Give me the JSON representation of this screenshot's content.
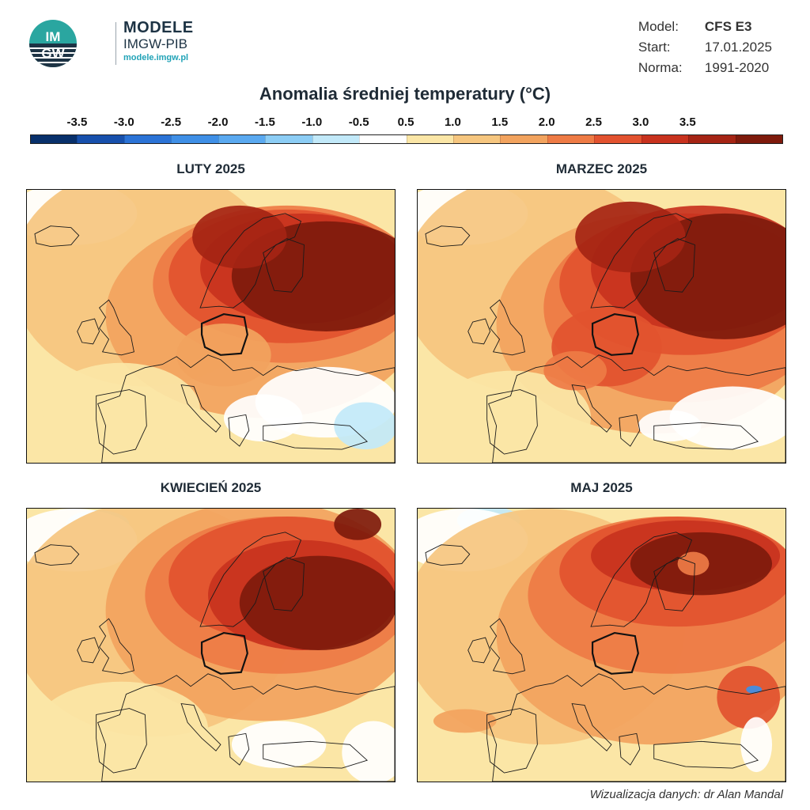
{
  "brand": {
    "logo_text_top": "IM",
    "logo_text_bottom": "GW",
    "title": "MODELE",
    "subtitle": "IMGW-PIB",
    "url": "modele.imgw.pl"
  },
  "meta": [
    {
      "key": "Model:",
      "value": "CFS E3"
    },
    {
      "key": "Start:",
      "value": "17.01.2025"
    },
    {
      "key": "Norma:",
      "value": "1991-2020"
    }
  ],
  "title": "Anomalia średniej temperatury (°C)",
  "colorbar": {
    "labels": [
      "-3.5",
      "-3.0",
      "-2.5",
      "-2.0",
      "-1.5",
      "-1.0",
      "-0.5",
      "0.5",
      "1.0",
      "1.5",
      "2.0",
      "2.5",
      "3.0",
      "3.5"
    ],
    "colors": [
      "#08306b",
      "#1750ac",
      "#2b73d6",
      "#3f8fe6",
      "#5aa9f0",
      "#8ccdf5",
      "#c2e9f9",
      "#ffffff",
      "#fbe6a6",
      "#f6c67f",
      "#f2a35e",
      "#ee7b45",
      "#e2522f",
      "#c8321e",
      "#a52414",
      "#7e1a0c"
    ]
  },
  "panels": [
    {
      "title": "LUTY 2025"
    },
    {
      "title": "MARZEC 2025"
    },
    {
      "title": "KWIECIEŃ 2025"
    },
    {
      "title": "MAJ 2025"
    }
  ],
  "credit": "Wizualizacja danych: dr Alan Mandal"
}
